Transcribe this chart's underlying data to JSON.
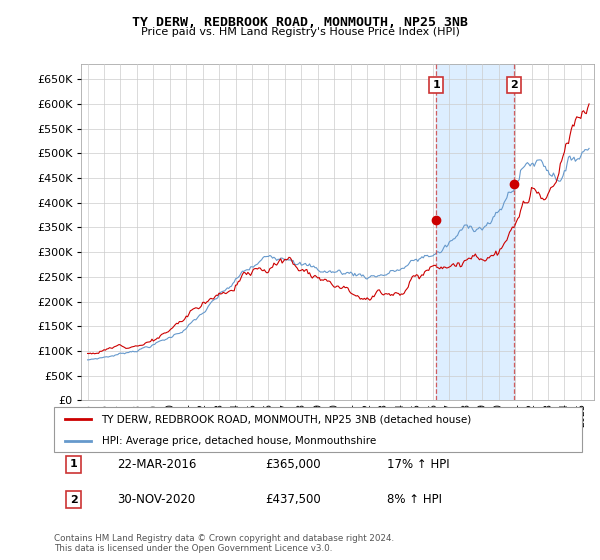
{
  "title": "TY DERW, REDBROOK ROAD, MONMOUTH, NP25 3NB",
  "subtitle": "Price paid vs. HM Land Registry's House Price Index (HPI)",
  "ytick_values": [
    0,
    50000,
    100000,
    150000,
    200000,
    250000,
    300000,
    350000,
    400000,
    450000,
    500000,
    550000,
    600000,
    650000
  ],
  "ylim": [
    0,
    680000
  ],
  "legend_line1": "TY DERW, REDBROOK ROAD, MONMOUTH, NP25 3NB (detached house)",
  "legend_line2": "HPI: Average price, detached house, Monmouthshire",
  "transaction1_date": "22-MAR-2016",
  "transaction1_price": "£365,000",
  "transaction1_hpi": "17% ↑ HPI",
  "transaction2_date": "30-NOV-2020",
  "transaction2_price": "£437,500",
  "transaction2_hpi": "8% ↑ HPI",
  "footer": "Contains HM Land Registry data © Crown copyright and database right 2024.\nThis data is licensed under the Open Government Licence v3.0.",
  "hpi_color": "#6699cc",
  "price_color": "#cc0000",
  "transaction1_x": 2016.22,
  "transaction1_y": 365000,
  "transaction2_x": 2020.92,
  "transaction2_y": 437500,
  "xlim_left": 1994.6,
  "xlim_right": 2025.8,
  "shade_color": "#ddeeff"
}
